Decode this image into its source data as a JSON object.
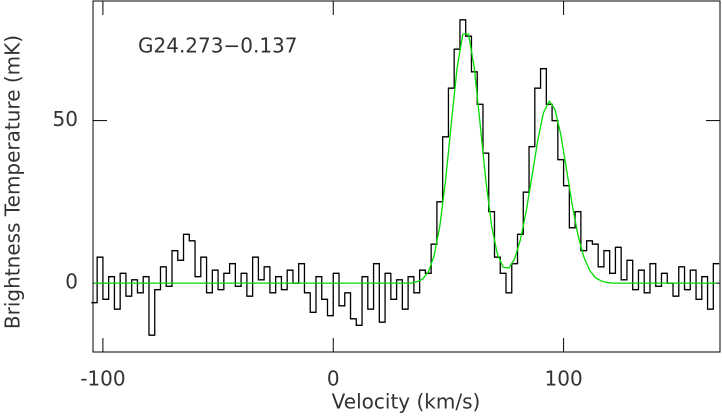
{
  "chart_data": {
    "type": "step",
    "annotation": "G24.273−0.137",
    "x_label": "Velocity (km/s)",
    "y_label": "Brightness Temperature (mK)",
    "xlim": [
      -104.3,
      167.9
    ],
    "ylim": [
      -21.2,
      86.8
    ],
    "xticks": [
      -100,
      0,
      100
    ],
    "yticks": [
      0,
      50
    ],
    "x": [
      -103.75,
      -101.25,
      -98.75,
      -96.25,
      -93.75,
      -91.25,
      -88.75,
      -86.25,
      -83.75,
      -81.25,
      -78.75,
      -76.25,
      -73.75,
      -71.25,
      -68.75,
      -66.25,
      -63.75,
      -61.25,
      -58.75,
      -56.25,
      -53.75,
      -51.25,
      -48.75,
      -46.25,
      -43.75,
      -41.25,
      -38.75,
      -36.25,
      -33.75,
      -31.25,
      -28.75,
      -26.25,
      -23.75,
      -21.25,
      -18.75,
      -16.25,
      -13.75,
      -11.25,
      -8.75,
      -6.25,
      -3.75,
      -1.25,
      1.25,
      3.75,
      6.25,
      8.75,
      11.25,
      13.75,
      16.25,
      18.75,
      21.25,
      23.75,
      26.25,
      28.75,
      31.25,
      33.75,
      36.25,
      38.75,
      41.25,
      43.75,
      46.25,
      48.75,
      51.25,
      53.75,
      56.25,
      58.75,
      61.25,
      63.75,
      66.25,
      68.75,
      71.25,
      73.75,
      76.25,
      78.75,
      81.25,
      83.75,
      86.25,
      88.75,
      91.25,
      93.75,
      96.25,
      98.75,
      101.25,
      103.75,
      106.25,
      108.75,
      111.25,
      113.75,
      116.25,
      118.75,
      121.25,
      123.75,
      126.25,
      128.75,
      131.25,
      133.75,
      136.25,
      138.75,
      141.25,
      143.75,
      146.25,
      148.75,
      151.25,
      153.75,
      156.25,
      158.75,
      161.25,
      163.75,
      166.25
    ],
    "series": [
      {
        "color": "#000000",
        "style": "step",
        "values": [
          -6,
          8,
          -5,
          2,
          -8,
          3,
          -4,
          1,
          -3,
          2,
          -16,
          -2,
          5,
          -1,
          10,
          7,
          15,
          13,
          2,
          8,
          -3,
          4,
          -2,
          3,
          6,
          -1,
          3,
          -4,
          8,
          1,
          5,
          -3,
          2,
          -2,
          4,
          0,
          6,
          -3,
          -9,
          2,
          -5,
          -10,
          3,
          -7,
          -3,
          -11,
          -13,
          2,
          -8,
          6,
          -12,
          3,
          -5,
          1,
          -8,
          2,
          -3,
          4,
          3,
          12,
          25,
          45,
          60,
          72,
          81,
          76,
          65,
          55,
          40,
          22,
          8,
          3,
          -3,
          6,
          15,
          28,
          42,
          60,
          66,
          55,
          50,
          38,
          30,
          17,
          22,
          10,
          13,
          12,
          5,
          10,
          3,
          11,
          1,
          7,
          -2,
          4,
          -3,
          6,
          -1,
          3,
          0,
          -4,
          5,
          -2,
          4,
          -5,
          2,
          -8,
          6
        ]
      },
      {
        "color": "#00dd00",
        "style": "line",
        "values": [
          0,
          0,
          0,
          0,
          0,
          0,
          0,
          0,
          0,
          0,
          0,
          0,
          0,
          0,
          0,
          0,
          0,
          0,
          0,
          0,
          0,
          0,
          0,
          0,
          0,
          0,
          0,
          0,
          0,
          0,
          0,
          0,
          0,
          0,
          0,
          0,
          0,
          0,
          0,
          0,
          0,
          0,
          0,
          0,
          0,
          0,
          0,
          0,
          0,
          0,
          0,
          0,
          0,
          0,
          0,
          0,
          0.4,
          1.2,
          3.4,
          8.3,
          17.4,
          31.5,
          49.1,
          66.1,
          76.6,
          76.6,
          66.1,
          49.1,
          31.6,
          17.6,
          8.9,
          4.9,
          4.6,
          7.5,
          13.3,
          22.0,
          32.8,
          43.8,
          52.4,
          56.0,
          53.5,
          45.8,
          35.1,
          24.1,
          14.7,
          8.1,
          4.0,
          1.7,
          0.7,
          0.2,
          0,
          0,
          0,
          0,
          0,
          0,
          0,
          0,
          0,
          0,
          0,
          0,
          0,
          0,
          0,
          0,
          0,
          0,
          0
        ]
      }
    ]
  }
}
